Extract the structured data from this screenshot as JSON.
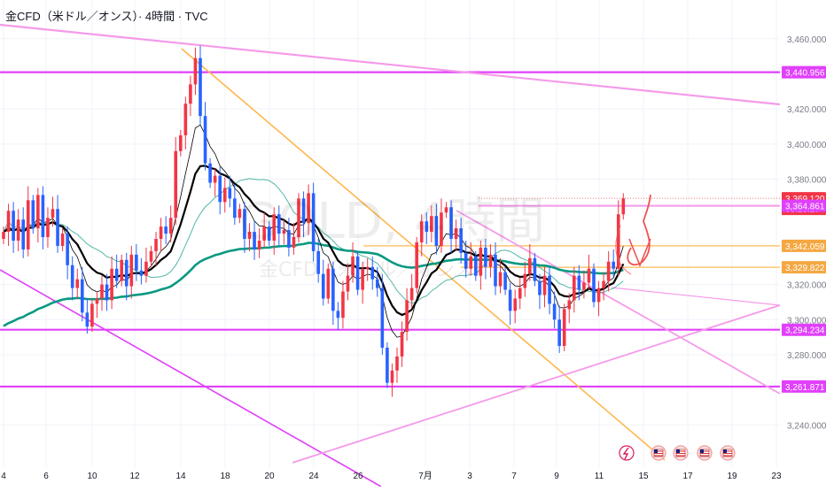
{
  "header": {
    "title": "金CFD（米ドル／オンス）· 4時間 · TVC"
  },
  "watermark": {
    "symbol": "GOLD, 4時間",
    "name": "金CFD（米ドル／オンス）"
  },
  "colors": {
    "up": "#f23645",
    "down": "#2962ff",
    "ema200": "#089981",
    "ma_black": "#000000",
    "magenta": "#e040fb",
    "pink": "#f59ae9",
    "orange": "#ffb74d",
    "grid": "#f0f3fa",
    "axis_text": "#787b86"
  },
  "price_axis": {
    "ticks": [
      "3,460.000",
      "3,420.000",
      "3,400.000",
      "3,380.000",
      "3,320.000",
      "3,300.000",
      "3,280.000",
      "3,240.000"
    ],
    "labels": [
      {
        "text": "3,440.956",
        "kind": "magenta"
      },
      {
        "text": "3,369.120",
        "kind": "red",
        "sub": "03:13:27"
      },
      {
        "text": "3,364.861",
        "kind": "magenta"
      },
      {
        "text": "3,342.059",
        "kind": "orange"
      },
      {
        "text": "3,329.822",
        "kind": "orange"
      },
      {
        "text": "3,294.234",
        "kind": "magenta"
      },
      {
        "text": "3,261.871",
        "kind": "magenta"
      }
    ]
  },
  "time_axis": {
    "ticks": [
      "4",
      "6",
      "10",
      "12",
      "14",
      "18",
      "20",
      "24",
      "26",
      "7月",
      "3",
      "7",
      "9",
      "11",
      "15",
      "17",
      "19",
      "23"
    ]
  },
  "chart_data": {
    "type": "candlestick",
    "symbol": "GOLD",
    "timeframe": "4時間",
    "ylim": [
      3220,
      3472
    ],
    "levels": [
      3440.956,
      3364.861,
      3342.059,
      3329.822,
      3294.234,
      3261.871
    ],
    "last_price": 3369.12,
    "countdown": "03:13:27",
    "ohlc_close": [
      3350,
      3362,
      3345,
      3357,
      3340,
      3368,
      3352,
      3371,
      3347,
      3358,
      3363,
      3342,
      3349,
      3331,
      3318,
      3323,
      3304,
      3296,
      3309,
      3312,
      3320,
      3311,
      3329,
      3322,
      3334,
      3319,
      3337,
      3328,
      3325,
      3333,
      3339,
      3346,
      3353,
      3349,
      3358,
      3396,
      3405,
      3423,
      3434,
      3449,
      3416,
      3389,
      3378,
      3382,
      3367,
      3375,
      3369,
      3358,
      3363,
      3346,
      3350,
      3340,
      3345,
      3353,
      3345,
      3360,
      3349,
      3351,
      3341,
      3347,
      3369,
      3355,
      3372,
      3339,
      3326,
      3312,
      3329,
      3305,
      3301,
      3316,
      3325,
      3336,
      3317,
      3329,
      3330,
      3323,
      3318,
      3284,
      3264,
      3271,
      3279,
      3293,
      3311,
      3318,
      3344,
      3356,
      3350,
      3359,
      3342,
      3361,
      3364,
      3346,
      3352,
      3338,
      3329,
      3336,
      3325,
      3341,
      3330,
      3337,
      3319,
      3327,
      3317,
      3305,
      3312,
      3318,
      3326,
      3335,
      3322,
      3314,
      3325,
      3309,
      3300,
      3285,
      3306,
      3311,
      3325,
      3317,
      3321,
      3329,
      3310,
      3318,
      3322,
      3333,
      3329,
      3360,
      3369
    ]
  }
}
